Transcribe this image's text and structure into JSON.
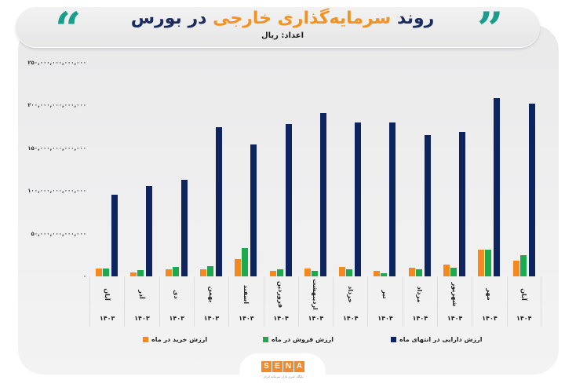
{
  "header": {
    "title_part1": "روند",
    "title_highlight": "سرمایه‌گذاری خارجی",
    "title_part2": "در بورس",
    "subtitle": "اعداد: ریال",
    "quote_left": "“",
    "quote_right": "”"
  },
  "colors": {
    "buy": "#f5891f",
    "sell": "#1daa4e",
    "asset": "#0e2461",
    "accent_teal": "#1a9e8c",
    "title_navy": "#1b2b5e",
    "title_orange": "#f39221"
  },
  "y_axis": {
    "ticks": [
      "۰",
      "۵۰,۰۰۰,۰۰۰,۰۰۰,۰۰۰",
      "۱۰۰,۰۰۰,۰۰۰,۰۰۰,۰۰۰",
      "۱۵۰,۰۰۰,۰۰۰,۰۰۰,۰۰۰",
      "۲۰۰,۰۰۰,۰۰۰,۰۰۰,۰۰۰",
      "۲۵۰,۰۰۰,۰۰۰,۰۰۰,۰۰۰"
    ]
  },
  "x_axis": {
    "months": [
      "آبان",
      "آذر",
      "دی",
      "بهمن",
      "اسفند",
      "فروردین",
      "اردیبهشت",
      "خرداد",
      "تیر",
      "مرداد",
      "شهریور",
      "مهر",
      "آبان"
    ],
    "years": [
      "۱۴۰۳",
      "۱۴۰۳",
      "۱۴۰۳",
      "۱۴۰۳",
      "۱۴۰۳",
      "۱۴۰۴",
      "۱۴۰۴",
      "۱۴۰۴",
      "۱۴۰۴",
      "۱۴۰۴",
      "۱۴۰۴",
      "۱۴۰۴",
      "۱۴۰۴"
    ]
  },
  "legend": {
    "buy": "ارزش خرید در ماه",
    "sell": "ارزش فروش در ماه",
    "asset": "ارزش دارایی در انتهای ماه"
  },
  "footer": {
    "logo_letters": [
      "S",
      "E",
      "N",
      "A"
    ],
    "logo_subtitle": "پایگاه خبری بازار سرمایه ایران"
  },
  "chart_data": {
    "type": "bar",
    "title": "روند سرمایه‌گذاری خارجی در بورس",
    "subtitle": "اعداد: ریال",
    "xlabel": "",
    "ylabel": "ریال",
    "ylim": [
      0,
      250000000000000
    ],
    "grid": false,
    "legend_position": "bottom",
    "categories": [
      "آبان ۱۴۰۳",
      "آذر ۱۴۰۳",
      "دی ۱۴۰۳",
      "بهمن ۱۴۰۳",
      "اسفند ۱۴۰۳",
      "فروردین ۱۴۰۴",
      "اردیبهشت ۱۴۰۴",
      "خرداد ۱۴۰۴",
      "تیر ۱۴۰۴",
      "مرداد ۱۴۰۴",
      "شهریور ۱۴۰۴",
      "مهر ۱۴۰۴",
      "آبان ۱۴۰۴"
    ],
    "series": [
      {
        "name": "ارزش خرید در ماه",
        "color": "#f5891f",
        "values": [
          9000000000000,
          5000000000000,
          8000000000000,
          8000000000000,
          20000000000000,
          6000000000000,
          9000000000000,
          11000000000000,
          6000000000000,
          10000000000000,
          14000000000000,
          31000000000000,
          18000000000000
        ]
      },
      {
        "name": "ارزش فروش در ماه",
        "color": "#1daa4e",
        "values": [
          9000000000000,
          7500000000000,
          11000000000000,
          12000000000000,
          33000000000000,
          8000000000000,
          6000000000000,
          8500000000000,
          4000000000000,
          8500000000000,
          10000000000000,
          31000000000000,
          25000000000000
        ]
      },
      {
        "name": "ارزش دارایی در انتهای ماه",
        "color": "#0e2461",
        "values": [
          96000000000000,
          106000000000000,
          113000000000000,
          175000000000000,
          154000000000000,
          178000000000000,
          191000000000000,
          180000000000000,
          180000000000000,
          165000000000000,
          169000000000000,
          209000000000000,
          202000000000000
        ]
      }
    ]
  }
}
